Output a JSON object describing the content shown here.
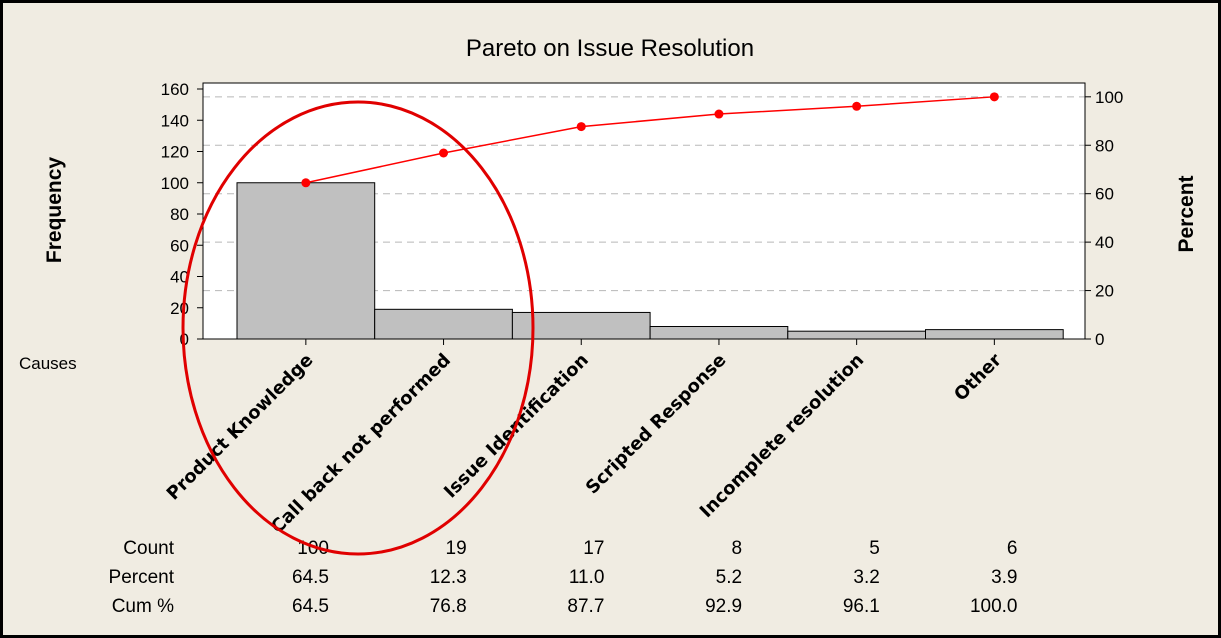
{
  "chart_data": {
    "type": "bar",
    "title": "Pareto on Issue Resolution",
    "ylabel": "Frequency",
    "y2label": "Percent",
    "categories_label": "Causes",
    "categories": [
      "Product Knowledge",
      "Call back not performed",
      "Issue Identification",
      "Scripted Response",
      "Incomplete resolution",
      "Other"
    ],
    "series": [
      {
        "values": [
          100,
          19,
          17,
          8,
          5,
          6
        ]
      },
      {
        "values": [
          64.5,
          76.8,
          87.7,
          92.9,
          96.1,
          100.0
        ]
      }
    ],
    "ylim": [
      0,
      160
    ],
    "y2lim": [
      0,
      100
    ],
    "yticks": [
      0,
      20,
      40,
      60,
      80,
      100,
      120,
      140,
      160
    ],
    "y2ticks": [
      0,
      20,
      40,
      60,
      80,
      100
    ],
    "grid": "dashed-horizontal",
    "line_color": "#ff0000",
    "bar_color": "#c0c0c0",
    "annotation_color": "#e00000",
    "table": {
      "row_labels": [
        "Count",
        "Percent",
        "Cum %"
      ],
      "rows": [
        [
          "100",
          "19",
          "17",
          "8",
          "5",
          "6"
        ],
        [
          "64.5",
          "12.3",
          "11.0",
          "5.2",
          "3.2",
          "3.9"
        ],
        [
          "64.5",
          "76.8",
          "87.7",
          "92.9",
          "96.1",
          "100.0"
        ]
      ]
    }
  }
}
